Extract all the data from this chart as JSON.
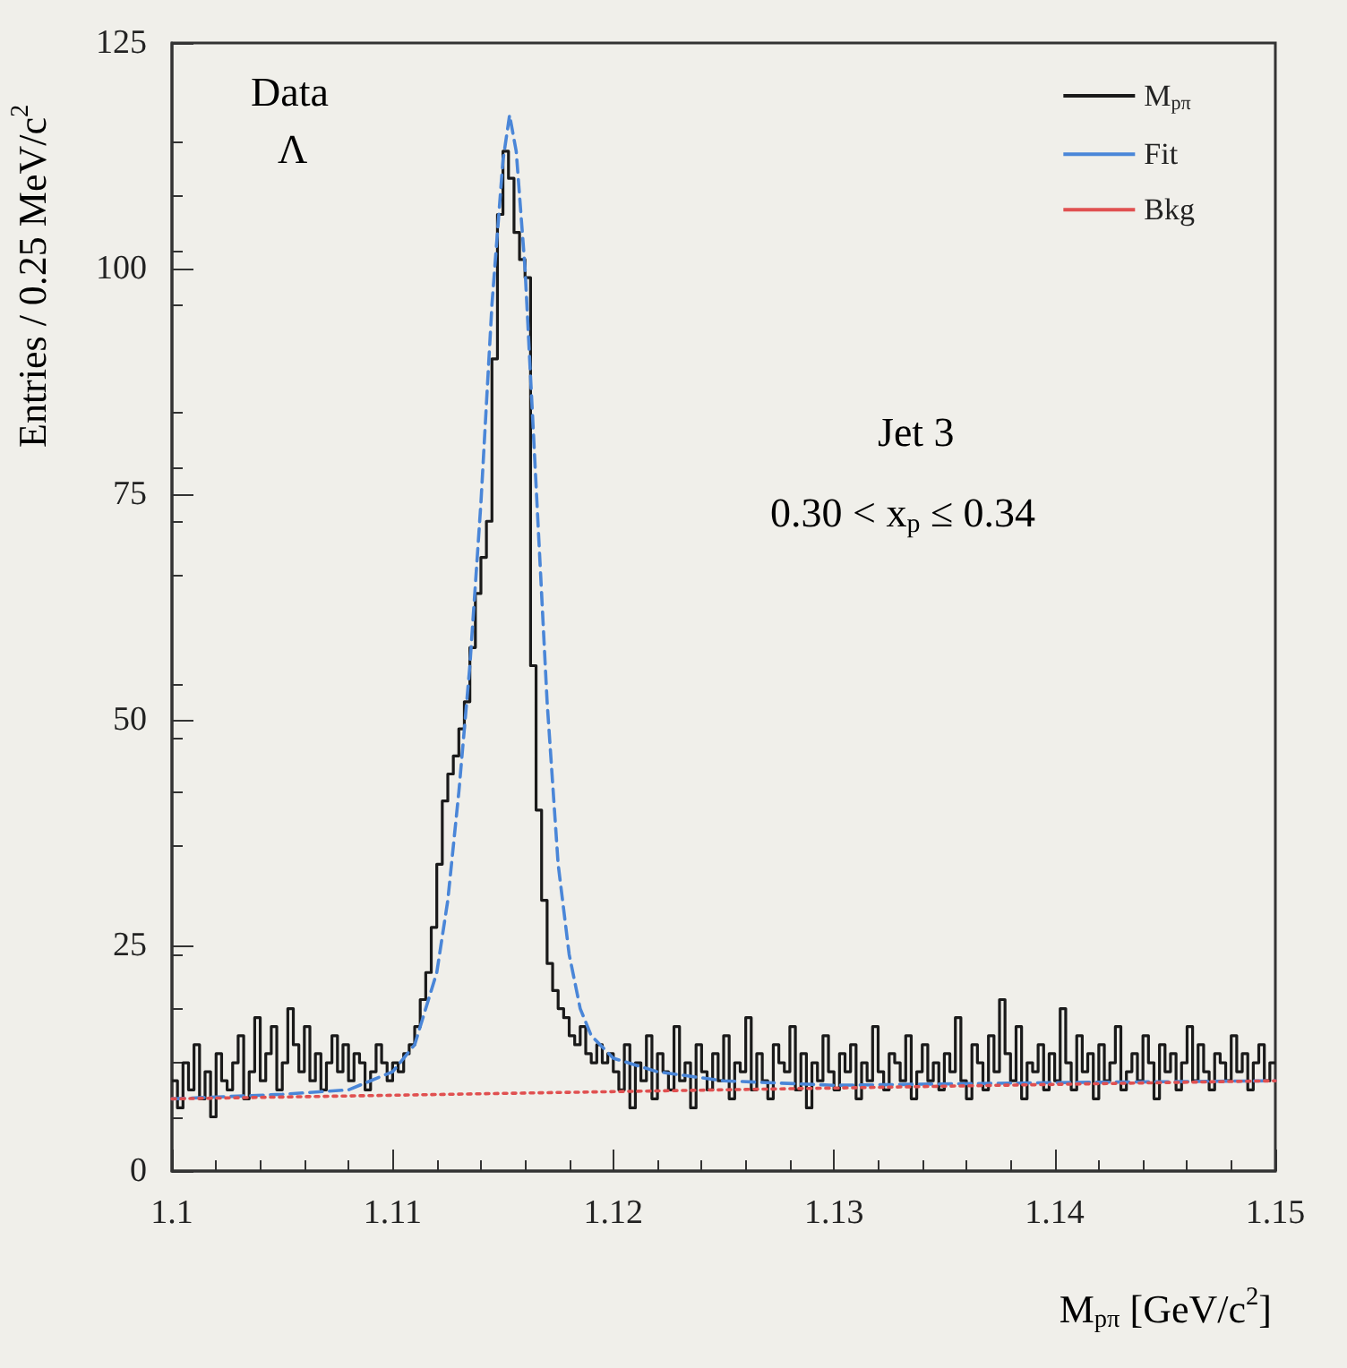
{
  "chart_data": {
    "type": "histogram",
    "xlabel": "M$_{pπ}$ [GeV/c$^{2}$]",
    "ylabel": "Entries / 0.25 MeV/c$^{2}$",
    "annotations": [
      "Data",
      "Λ",
      "Jet 3",
      "0.30 < x$_{p}$ ≤ 0.34"
    ],
    "xlim": [
      1.1,
      1.15
    ],
    "xticks": [
      1.1,
      1.11,
      1.12,
      1.13,
      1.14,
      1.15
    ],
    "ylim": [
      0,
      125
    ],
    "yticks": [
      0,
      25,
      50,
      75,
      100,
      125
    ],
    "legend": "top right",
    "grid": false,
    "marker": "none",
    "series": [
      {
        "name": "M$_{pπ}$",
        "type": "histogram",
        "color": "#1a1a1a",
        "line_style": "solid",
        "bins": [
          1.1,
          1.10025,
          1.1005,
          1.10075,
          1.101,
          1.10125,
          1.1015,
          1.10175,
          1.102,
          1.10225,
          1.1025,
          1.10275,
          1.103,
          1.10325,
          1.1035,
          1.10375,
          1.104,
          1.10425,
          1.1045,
          1.10475,
          1.105,
          1.10525,
          1.1055,
          1.10575,
          1.106,
          1.10625,
          1.1065,
          1.10675,
          1.107,
          1.10725,
          1.1075,
          1.10775,
          1.108,
          1.10825,
          1.1085,
          1.10875,
          1.109,
          1.10925,
          1.1095,
          1.10975,
          1.11,
          1.11025,
          1.1105,
          1.11075,
          1.111,
          1.11125,
          1.1115,
          1.11175,
          1.112,
          1.11225,
          1.1125,
          1.11275,
          1.113,
          1.11325,
          1.1135,
          1.11375,
          1.114,
          1.11425,
          1.1145,
          1.11475,
          1.115,
          1.11525,
          1.1155,
          1.11575,
          1.116,
          1.11625,
          1.1165,
          1.11675,
          1.117,
          1.11725,
          1.1175,
          1.11775,
          1.118,
          1.11825,
          1.1185,
          1.11875,
          1.119,
          1.11925,
          1.1195,
          1.11975,
          1.12,
          1.12025,
          1.1205,
          1.12075,
          1.121,
          1.12125,
          1.1215,
          1.12175,
          1.122,
          1.12225,
          1.1225,
          1.12275,
          1.123,
          1.12325,
          1.1235,
          1.12375,
          1.124,
          1.12425,
          1.1245,
          1.12475,
          1.125,
          1.12525,
          1.1255,
          1.12575,
          1.126,
          1.12625,
          1.1265,
          1.12675,
          1.127,
          1.12725,
          1.1275,
          1.12775,
          1.128,
          1.12825,
          1.1285,
          1.12875,
          1.129,
          1.12925,
          1.1295,
          1.12975,
          1.13,
          1.13025,
          1.1305,
          1.13075,
          1.131,
          1.13125,
          1.1315,
          1.13175,
          1.132,
          1.13225,
          1.1325,
          1.13275,
          1.133,
          1.13325,
          1.1335,
          1.13375,
          1.134,
          1.13425,
          1.1345,
          1.13475,
          1.135,
          1.13525,
          1.1355,
          1.13575,
          1.136,
          1.13625,
          1.1365,
          1.13675,
          1.137,
          1.13725,
          1.1375,
          1.13775,
          1.138,
          1.13825,
          1.1385,
          1.13875,
          1.139,
          1.13925,
          1.1395,
          1.13975,
          1.14,
          1.14025,
          1.1405,
          1.14075,
          1.141,
          1.14125,
          1.1415,
          1.14175,
          1.142,
          1.14225,
          1.1425,
          1.14275,
          1.143,
          1.14325,
          1.1435,
          1.14375,
          1.144,
          1.14425,
          1.1445,
          1.14475,
          1.145,
          1.14525,
          1.1455,
          1.14575,
          1.146,
          1.14625,
          1.1465,
          1.14675,
          1.147,
          1.14725,
          1.1475,
          1.14775,
          1.148,
          1.14825,
          1.1485,
          1.14875,
          1.149,
          1.14925,
          1.1495,
          1.14975,
          1.15
        ],
        "values": [
          10,
          7,
          12,
          9,
          14,
          8,
          11,
          6,
          13,
          10,
          9,
          12,
          15,
          8,
          11,
          17,
          10,
          13,
          16,
          9,
          12,
          18,
          14,
          11,
          16,
          10,
          13,
          9,
          12,
          15,
          11,
          14,
          10,
          13,
          12,
          9,
          11,
          14,
          12,
          10,
          12,
          11,
          13,
          14,
          16,
          19,
          22,
          27,
          34,
          41,
          44,
          46,
          49,
          52,
          58,
          64,
          68,
          72,
          90,
          106,
          113,
          110,
          104,
          101,
          99,
          56,
          40,
          30,
          23,
          20,
          18,
          17,
          15,
          14,
          16,
          13,
          12,
          14,
          12,
          13,
          11,
          9,
          14,
          7,
          12,
          10,
          15,
          8,
          13,
          11,
          9,
          16,
          10,
          12,
          7,
          14,
          11,
          9,
          13,
          10,
          15,
          8,
          12,
          11,
          17,
          9,
          13,
          10,
          8,
          14,
          12,
          11,
          16,
          9,
          13,
          7,
          12,
          10,
          15,
          11,
          9,
          13,
          11,
          14,
          8,
          12,
          10,
          16,
          11,
          9,
          13,
          12,
          10,
          15,
          8,
          11,
          14,
          10,
          12,
          9,
          13,
          11,
          17,
          10,
          8,
          14,
          12,
          9,
          15,
          11,
          19,
          13,
          10,
          16,
          8,
          12,
          11,
          14,
          9,
          13,
          10,
          18,
          12,
          9,
          15,
          11,
          13,
          8,
          14,
          10,
          12,
          16,
          9,
          11,
          13,
          10,
          15,
          12,
          8,
          14,
          11,
          13,
          9,
          12,
          16,
          10,
          14,
          11,
          9,
          13,
          12,
          10,
          15,
          11,
          13,
          9,
          12,
          14,
          10,
          12
        ]
      },
      {
        "name": "Fit",
        "type": "line",
        "color": "#4a86d8",
        "line_style": "dashed",
        "x": [
          1.1,
          1.105,
          1.108,
          1.11,
          1.111,
          1.112,
          1.1125,
          1.113,
          1.1135,
          1.114,
          1.1145,
          1.115,
          1.1153,
          1.1156,
          1.116,
          1.1165,
          1.117,
          1.1175,
          1.118,
          1.1185,
          1.119,
          1.12,
          1.122,
          1.125,
          1.13,
          1.14,
          1.15
        ],
        "values": [
          8,
          8.5,
          9,
          11,
          14,
          22,
          30,
          42,
          56,
          74,
          96,
          112,
          117,
          113,
          100,
          76,
          52,
          34,
          24,
          18,
          15,
          12.5,
          11,
          10,
          9.5,
          9.8,
          10
        ]
      },
      {
        "name": "Bkg",
        "type": "line",
        "color": "#e05050",
        "line_style": "dotted",
        "x": [
          1.1,
          1.15
        ],
        "values": [
          8,
          10
        ]
      }
    ]
  }
}
